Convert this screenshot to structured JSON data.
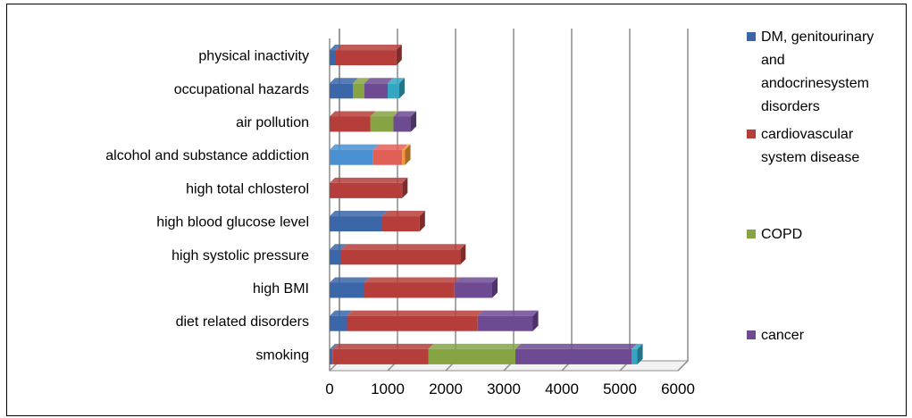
{
  "chart_data": {
    "type": "bar",
    "orientation": "horizontal",
    "stacked": true,
    "title": "",
    "xlabel": "",
    "ylabel": "",
    "xlim": [
      0,
      6000
    ],
    "x_ticks": [
      "0",
      "1000",
      "2000",
      "3000",
      "4000",
      "5000",
      "6000"
    ],
    "grid": true,
    "legend_position": "right",
    "categories": [
      "smoking",
      "diet related disorders",
      "high BMI",
      "high systolic pressure",
      "high blood glucose level",
      "high total chlosterol",
      "alcohol and substance addiction",
      "air pollution",
      "occupational hazards",
      "physical inactivity"
    ],
    "series": [
      {
        "name": "DM, genitourinary and andocrinesystem disorders",
        "legend_lines": [
          "DM, genitourinary",
          "and",
          "andocrinesystem",
          "disorders"
        ],
        "color": "#3B66A8",
        "values": [
          50,
          300,
          600,
          200,
          900,
          0,
          0,
          0,
          400,
          100
        ]
      },
      {
        "name": "cardiovascular system disease",
        "legend_lines": [
          "cardiovascular",
          "system disease"
        ],
        "color": "#B53E3B",
        "values": [
          1650,
          2250,
          1550,
          2050,
          650,
          1250,
          0,
          700,
          0,
          1050
        ]
      },
      {
        "name": "COPD",
        "legend_lines": [
          "COPD"
        ],
        "color": "#86A443",
        "values": [
          1500,
          0,
          0,
          0,
          0,
          0,
          0,
          400,
          200,
          0
        ]
      },
      {
        "name": "cancer",
        "legend_lines": [
          "cancer"
        ],
        "color": "#6E4A93",
        "values": [
          2000,
          950,
          650,
          0,
          0,
          0,
          0,
          300,
          400,
          0
        ]
      },
      {
        "name": "",
        "legend_lines": [],
        "color": "#4A8FCF",
        "values": [
          0,
          0,
          0,
          0,
          0,
          0,
          750,
          0,
          0,
          0
        ]
      },
      {
        "name": "",
        "legend_lines": [],
        "color": "#E06058",
        "values": [
          0,
          0,
          0,
          0,
          0,
          0,
          500,
          0,
          0,
          0
        ]
      },
      {
        "name": "",
        "legend_lines": [],
        "color": "#33A6C2",
        "values": [
          100,
          0,
          0,
          0,
          0,
          0,
          0,
          0,
          200,
          0
        ]
      },
      {
        "name": "",
        "legend_lines": [],
        "color": "#F09639",
        "values": [
          0,
          0,
          0,
          0,
          0,
          0,
          50,
          0,
          0,
          0
        ]
      }
    ]
  }
}
